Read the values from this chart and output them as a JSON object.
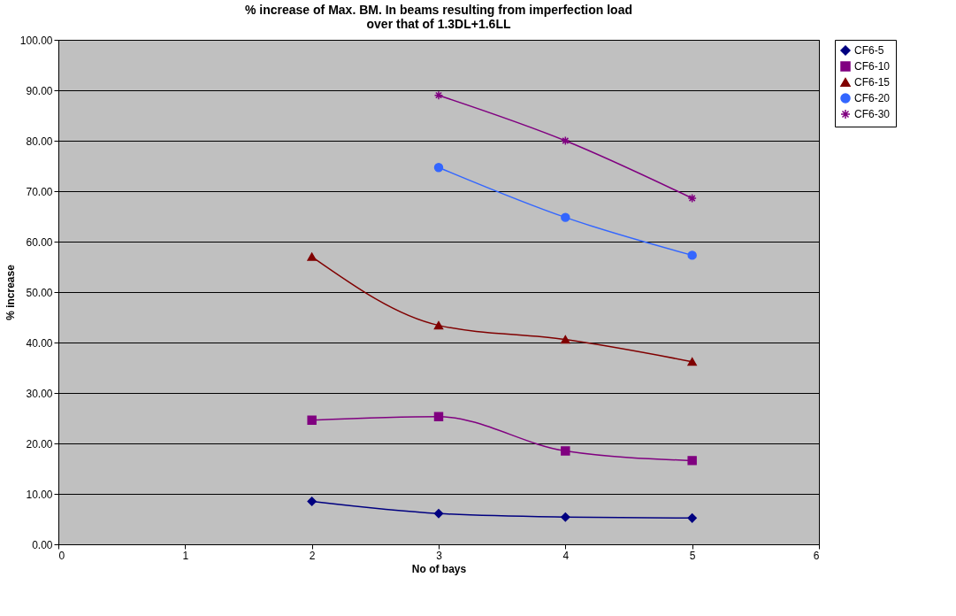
{
  "chart_data": {
    "type": "line",
    "title": "% increase of Max. BM. In beams resulting from imperfection load over that of 1.3DL+1.6LL",
    "xlabel": "No of bays",
    "ylabel": "% increase",
    "xlim": [
      0,
      6
    ],
    "xticks": [
      0,
      1,
      2,
      3,
      4,
      5,
      6
    ],
    "ylim": [
      0,
      100
    ],
    "yticks": [
      {
        "value": 0,
        "label": "0.00"
      },
      {
        "value": 10,
        "label": "10.00"
      },
      {
        "value": 20,
        "label": "20.00"
      },
      {
        "value": 30,
        "label": "30.00"
      },
      {
        "value": 40,
        "label": "40.00"
      },
      {
        "value": 50,
        "label": "50.00"
      },
      {
        "value": 60,
        "label": "60.00"
      },
      {
        "value": 70,
        "label": "70.00"
      },
      {
        "value": 80,
        "label": "80.00"
      },
      {
        "value": 90,
        "label": "90.00"
      },
      {
        "value": 100,
        "label": "100.00"
      }
    ],
    "grid": "y",
    "legend": "right",
    "series": [
      {
        "name": "CF6-5",
        "color": "#000080",
        "marker": "diamond",
        "x": [
          2,
          3,
          4,
          5
        ],
        "values": [
          8.5,
          6.1,
          5.4,
          5.2
        ]
      },
      {
        "name": "CF6-10",
        "color": "#800080",
        "marker": "square",
        "x": [
          2,
          3,
          4,
          5
        ],
        "values": [
          24.6,
          25.3,
          18.5,
          16.6
        ]
      },
      {
        "name": "CF6-15",
        "color": "#800000",
        "marker": "triangle",
        "x": [
          2,
          3,
          4,
          5
        ],
        "values": [
          57.0,
          43.4,
          40.6,
          36.2
        ]
      },
      {
        "name": "CF6-20",
        "color": "#3366ff",
        "marker": "circle",
        "x": [
          3,
          4,
          5
        ],
        "values": [
          74.7,
          64.8,
          57.3
        ]
      },
      {
        "name": "CF6-30",
        "color": "#800080",
        "marker": "cross",
        "x": [
          3,
          4,
          5
        ],
        "values": [
          89.0,
          80.0,
          68.6
        ]
      }
    ]
  }
}
